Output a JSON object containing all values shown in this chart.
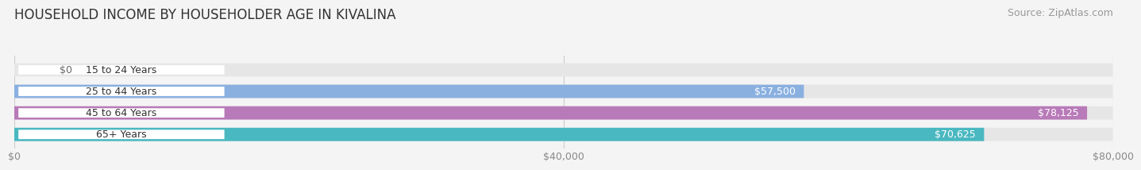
{
  "title": "HOUSEHOLD INCOME BY HOUSEHOLDER AGE IN KIVALINA",
  "source": "Source: ZipAtlas.com",
  "categories": [
    "15 to 24 Years",
    "25 to 44 Years",
    "45 to 64 Years",
    "65+ Years"
  ],
  "values": [
    0,
    57500,
    78125,
    70625
  ],
  "bar_colors": [
    "#f0a0a8",
    "#8ab0e0",
    "#b87ab8",
    "#4ab8c0"
  ],
  "label_colors": [
    "#888888",
    "#ffffff",
    "#ffffff",
    "#ffffff"
  ],
  "xlim": [
    0,
    80000
  ],
  "xticklabels": [
    "$0",
    "$40,000",
    "$80,000"
  ],
  "xtick_vals": [
    0,
    40000,
    80000
  ],
  "bar_height": 0.62,
  "background_color": "#f4f4f4",
  "bar_bg_color": "#e6e6e6",
  "title_fontsize": 12,
  "source_fontsize": 9,
  "label_fontsize": 9,
  "tick_fontsize": 9,
  "value_labels": [
    "$0",
    "$57,500",
    "$78,125",
    "$70,625"
  ]
}
